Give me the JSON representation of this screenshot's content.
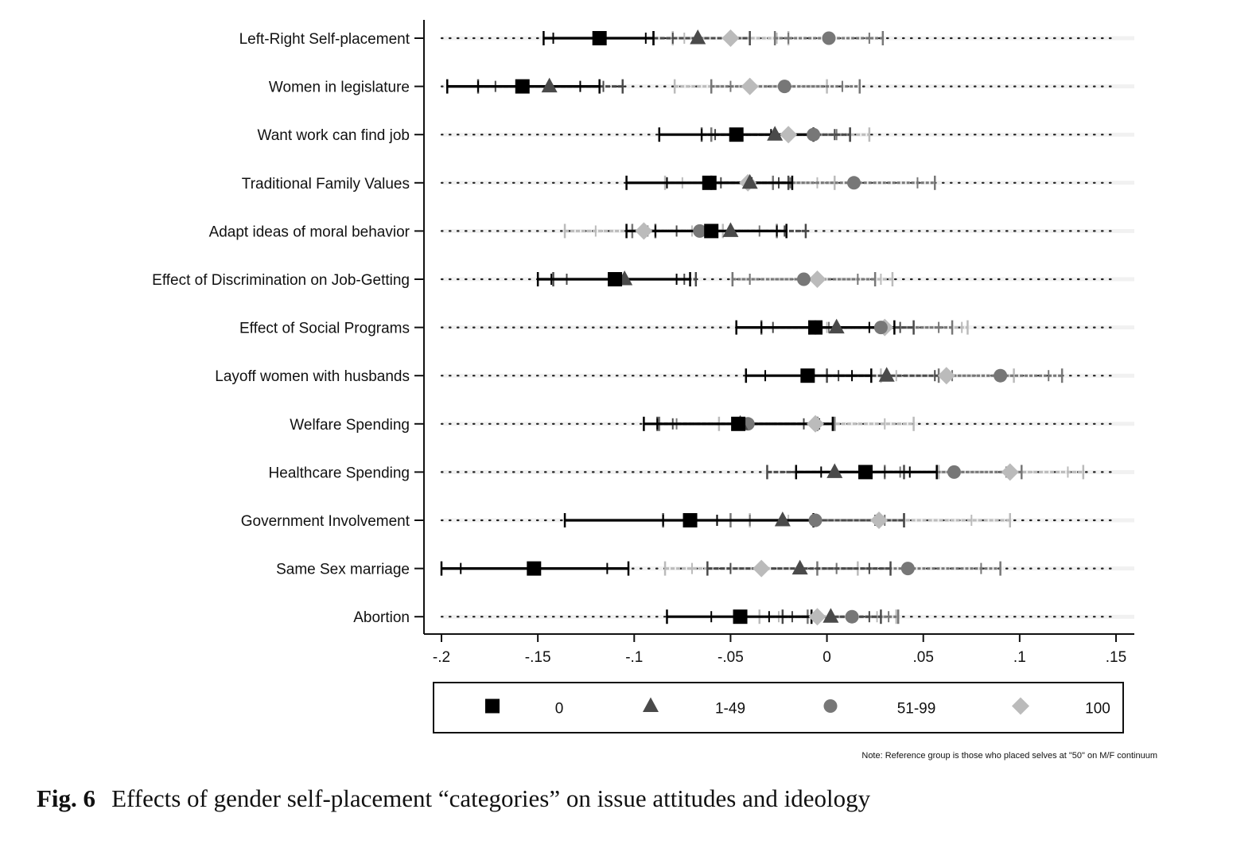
{
  "chart_data": {
    "type": "scatter",
    "title": "",
    "xlabel": "",
    "ylabel": "",
    "xlim": [
      -0.2,
      0.15
    ],
    "x_ticks": [
      {
        "value": -0.2,
        "label": "-.2"
      },
      {
        "value": -0.15,
        "label": "-.15"
      },
      {
        "value": -0.1,
        "label": "-.1"
      },
      {
        "value": -0.05,
        "label": "-.05"
      },
      {
        "value": 0,
        "label": "0"
      },
      {
        "value": 0.05,
        "label": ".05"
      },
      {
        "value": 0.1,
        "label": ".1"
      },
      {
        "value": 0.15,
        "label": ".15"
      }
    ],
    "categories": [
      "Left-Right Self-placement",
      "Women in legislature",
      "Want work can find job",
      "Traditional Family Values",
      "Adapt ideas of moral behavior",
      "Effect of Discrimination on Job-Getting",
      "Effect of Social Programs",
      "Layoff women with husbands",
      "Welfare Spending",
      "Healthcare Spending",
      "Government Involvement",
      "Same Sex marriage",
      "Abortion"
    ],
    "series": [
      {
        "name": "0",
        "marker": "square",
        "color": "#000000",
        "points": [
          {
            "est": -0.118,
            "ci95": [
              -0.147,
              -0.09
            ],
            "ci90": [
              -0.142,
              -0.094
            ]
          },
          {
            "est": -0.158,
            "ci95": [
              -0.197,
              -0.118
            ],
            "ci90": [
              -0.181,
              -0.128
            ]
          },
          {
            "est": -0.047,
            "ci95": [
              -0.087,
              -0.007
            ],
            "ci90": [
              -0.065,
              -0.029
            ]
          },
          {
            "est": -0.061,
            "ci95": [
              -0.104,
              -0.018
            ],
            "ci90": [
              -0.083,
              -0.039
            ]
          },
          {
            "est": -0.06,
            "ci95": [
              -0.104,
              -0.021
            ],
            "ci90": [
              -0.089,
              -0.026
            ]
          },
          {
            "est": -0.11,
            "ci95": [
              -0.15,
              -0.071
            ],
            "ci90": [
              -0.143,
              -0.078
            ]
          },
          {
            "est": -0.006,
            "ci95": [
              -0.047,
              0.035
            ],
            "ci90": [
              -0.034,
              0.022
            ]
          },
          {
            "est": -0.01,
            "ci95": [
              -0.042,
              0.023
            ],
            "ci90": [
              -0.032,
              0.013
            ]
          },
          {
            "est": -0.046,
            "ci95": [
              -0.095,
              0.003
            ],
            "ci90": [
              -0.088,
              -0.004
            ]
          },
          {
            "est": 0.02,
            "ci95": [
              -0.016,
              0.057
            ],
            "ci90": [
              -0.003,
              0.043
            ]
          },
          {
            "est": -0.071,
            "ci95": [
              -0.136,
              -0.007
            ],
            "ci90": [
              -0.085,
              -0.057
            ]
          },
          {
            "est": -0.152,
            "ci95": [
              -0.2,
              -0.103
            ],
            "ci90": [
              -0.19,
              -0.114
            ]
          },
          {
            "est": -0.045,
            "ci95": [
              -0.083,
              -0.008
            ],
            "ci90": [
              -0.06,
              -0.03
            ]
          }
        ]
      },
      {
        "name": "1-49",
        "marker": "triangle",
        "color": "#4a4a4a",
        "points": [
          {
            "est": -0.067,
            "ci95": [
              -0.09,
              -0.04
            ],
            "ci90": [
              -0.08,
              -0.05
            ]
          },
          {
            "est": -0.144,
            "ci95": [
              -0.181,
              -0.106
            ],
            "ci90": [
              -0.172,
              -0.116
            ]
          },
          {
            "est": -0.027,
            "ci95": [
              -0.065,
              0.012
            ],
            "ci90": [
              -0.058,
              0.004
            ]
          },
          {
            "est": -0.04,
            "ci95": [
              -0.06,
              -0.02
            ],
            "ci90": [
              -0.055,
              -0.025
            ]
          },
          {
            "est": -0.05,
            "ci95": [
              -0.089,
              -0.011
            ],
            "ci90": [
              -0.078,
              -0.022
            ]
          },
          {
            "est": -0.105,
            "ci95": [
              -0.142,
              -0.068
            ],
            "ci90": [
              -0.135,
              -0.074
            ]
          },
          {
            "est": 0.005,
            "ci95": [
              -0.034,
              0.045
            ],
            "ci90": [
              -0.028,
              0.038
            ]
          },
          {
            "est": 0.031,
            "ci95": [
              0.0,
              0.062
            ],
            "ci90": [
              0.006,
              0.056
            ]
          },
          {
            "est": -0.045,
            "ci95": [
              -0.088,
              -0.005
            ],
            "ci90": [
              -0.08,
              -0.012
            ]
          },
          {
            "est": 0.004,
            "ci95": [
              -0.031,
              0.04
            ],
            "ci90": [
              -0.016,
              0.03
            ]
          },
          {
            "est": -0.023,
            "ci95": [
              -0.085,
              0.04
            ],
            "ci90": [
              -0.07,
              0.025
            ]
          },
          {
            "est": -0.014,
            "ci95": [
              -0.062,
              0.033
            ],
            "ci90": [
              -0.05,
              0.022
            ]
          },
          {
            "est": 0.002,
            "ci95": [
              -0.023,
              0.028
            ],
            "ci90": [
              -0.018,
              0.022
            ]
          }
        ]
      },
      {
        "name": "51-99",
        "marker": "circle",
        "color": "#777777",
        "points": [
          {
            "est": 0.001,
            "ci95": [
              -0.027,
              0.029
            ],
            "ci90": [
              -0.02,
              0.022
            ]
          },
          {
            "est": -0.022,
            "ci95": [
              -0.06,
              0.017
            ],
            "ci90": [
              -0.05,
              0.008
            ]
          },
          {
            "est": -0.007,
            "ci95": [
              -0.06,
              0.012
            ],
            "ci90": [
              -0.05,
              0.005
            ]
          },
          {
            "est": 0.014,
            "ci95": [
              -0.028,
              0.056
            ],
            "ci90": [
              -0.019,
              0.047
            ]
          },
          {
            "est": -0.066,
            "ci95": [
              -0.101,
              -0.026
            ],
            "ci90": [
              -0.093,
              -0.035
            ]
          },
          {
            "est": -0.012,
            "ci95": [
              -0.049,
              0.025
            ],
            "ci90": [
              -0.04,
              0.016
            ]
          },
          {
            "est": 0.028,
            "ci95": [
              -0.006,
              0.065
            ],
            "ci90": [
              0.001,
              0.058
            ]
          },
          {
            "est": 0.09,
            "ci95": [
              0.058,
              0.122
            ],
            "ci90": [
              0.065,
              0.115
            ]
          },
          {
            "est": -0.041,
            "ci95": [
              -0.087,
              0.004
            ],
            "ci90": [
              -0.078,
              -0.005
            ]
          },
          {
            "est": 0.066,
            "ci95": [
              0.03,
              0.101
            ],
            "ci90": [
              0.038,
              0.093
            ]
          },
          {
            "est": -0.006,
            "ci95": [
              -0.05,
              0.04
            ],
            "ci90": [
              -0.04,
              0.03
            ]
          },
          {
            "est": 0.042,
            "ci95": [
              -0.005,
              0.09
            ],
            "ci90": [
              0.005,
              0.08
            ]
          },
          {
            "est": 0.013,
            "ci95": [
              -0.01,
              0.037
            ],
            "ci90": [
              -0.005,
              0.032
            ]
          }
        ]
      },
      {
        "name": "100",
        "marker": "diamond",
        "color": "#bbbbbb",
        "points": [
          {
            "est": -0.05,
            "ci95": [
              -0.08,
              -0.02
            ],
            "ci90": [
              -0.074,
              -0.026
            ]
          },
          {
            "est": -0.04,
            "ci95": [
              -0.079,
              0.0
            ],
            "ci90": [
              -0.06,
              -0.02
            ]
          },
          {
            "est": -0.02,
            "ci95": [
              -0.06,
              0.022
            ],
            "ci90": [
              -0.05,
              0.012
            ]
          },
          {
            "est": -0.041,
            "ci95": [
              -0.084,
              0.004
            ],
            "ci90": [
              -0.075,
              -0.005
            ]
          },
          {
            "est": -0.095,
            "ci95": [
              -0.136,
              -0.054
            ],
            "ci90": [
              -0.12,
              -0.07
            ]
          },
          {
            "est": -0.005,
            "ci95": [
              -0.049,
              0.034
            ],
            "ci90": [
              -0.04,
              0.028
            ]
          },
          {
            "est": 0.03,
            "ci95": [
              -0.009,
              0.073
            ],
            "ci90": [
              0.0,
              0.07
            ]
          },
          {
            "est": 0.062,
            "ci95": [
              0.028,
              0.097
            ],
            "ci90": [
              0.036,
              0.09
            ]
          },
          {
            "est": -0.006,
            "ci95": [
              -0.056,
              0.045
            ],
            "ci90": [
              -0.04,
              0.03
            ]
          },
          {
            "est": 0.095,
            "ci95": [
              0.058,
              0.133
            ],
            "ci90": [
              0.065,
              0.125
            ]
          },
          {
            "est": 0.027,
            "ci95": [
              -0.04,
              0.095
            ],
            "ci90": [
              -0.02,
              0.075
            ]
          },
          {
            "est": -0.034,
            "ci95": [
              -0.084,
              0.016
            ],
            "ci90": [
              -0.07,
              0.005
            ]
          },
          {
            "est": -0.005,
            "ci95": [
              -0.035,
              0.036
            ],
            "ci90": [
              -0.025,
              0.026
            ]
          }
        ]
      }
    ],
    "legend": {
      "position": "bottom",
      "entries": [
        "0",
        "1-49",
        "51-99",
        "100"
      ]
    },
    "note": "Note: Reference group is those who placed selves at \"50\" on M/F continuum"
  },
  "caption": {
    "label": "Fig. 6",
    "text": "Effects of gender self-placement “categories” on issue attitudes and ideology"
  }
}
